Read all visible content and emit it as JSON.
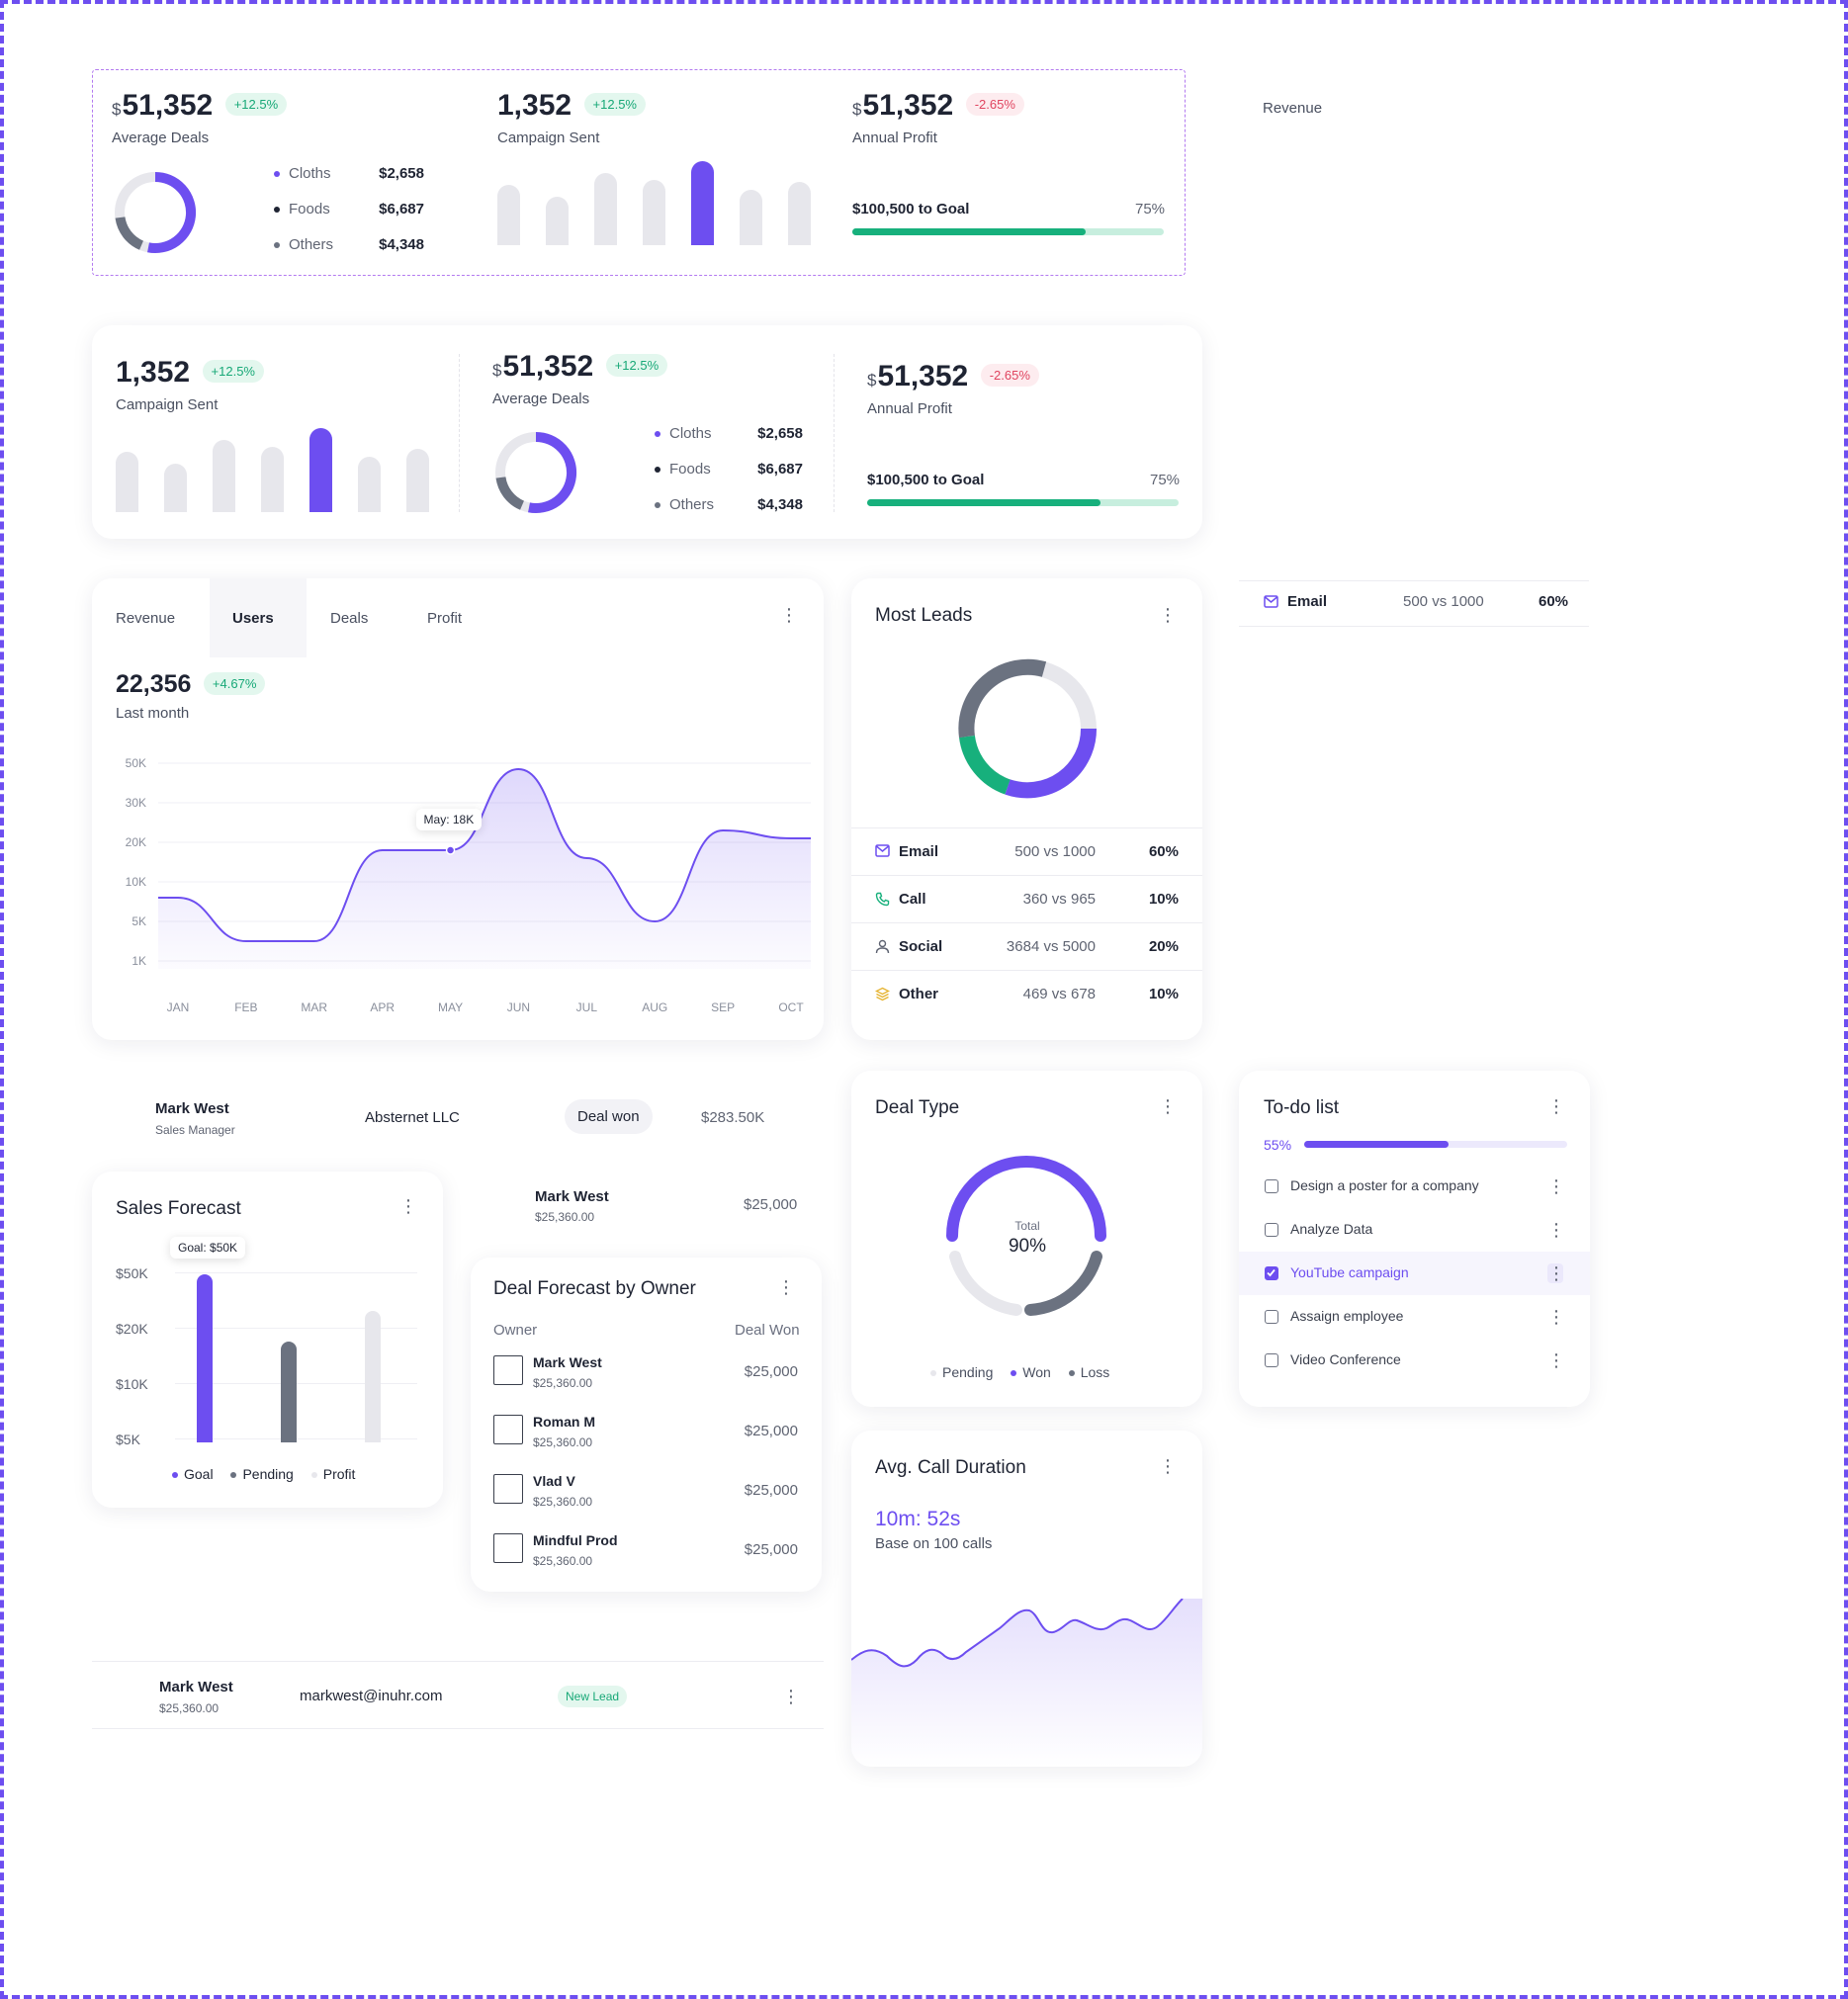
{
  "colors": {
    "accent": "#6d4ef0",
    "green": "#17b07c",
    "gray_dark": "#6b7280",
    "gray_light": "#e7e7ec",
    "red": "#e0445f",
    "yellow": "#e6b432"
  },
  "top_row": {
    "avg_deals": {
      "currency": "$",
      "value": "51,352",
      "change": "+12.5%",
      "label": "Average Deals",
      "items": [
        {
          "name": "Cloths",
          "amount": "$2,658"
        },
        {
          "name": "Foods",
          "amount": "$6,687"
        },
        {
          "name": "Others",
          "amount": "$4,348"
        }
      ]
    },
    "campaign": {
      "value": "1,352",
      "change": "+12.5%",
      "label": "Campaign Sent",
      "bars": [
        0.72,
        0.58,
        0.86,
        0.78,
        1.0,
        0.66,
        0.75
      ],
      "active_index": 4
    },
    "annual": {
      "currency": "$",
      "value": "51,352",
      "change": "-2.65%",
      "label": "Annual Profit",
      "goal_label": "$100,500 to Goal",
      "goal_pct": "75%",
      "goal_fraction": 0.75
    },
    "revenue_label": "Revenue"
  },
  "second_row": {
    "campaign": {
      "value": "1,352",
      "change": "+12.5%",
      "label": "Campaign Sent",
      "bars": [
        0.72,
        0.58,
        0.86,
        0.78,
        1.0,
        0.66,
        0.75
      ],
      "active_index": 4
    },
    "avg_deals": {
      "currency": "$",
      "value": "51,352",
      "change": "+12.5%",
      "label": "Average Deals",
      "items": [
        {
          "name": "Cloths",
          "amount": "$2,658"
        },
        {
          "name": "Foods",
          "amount": "$6,687"
        },
        {
          "name": "Others",
          "amount": "$4,348"
        }
      ]
    },
    "annual": {
      "currency": "$",
      "value": "51,352",
      "change": "-2.65%",
      "label": "Annual Profit",
      "goal_label": "$100,500 to Goal",
      "goal_pct": "75%",
      "goal_fraction": 0.75
    }
  },
  "users_chart": {
    "tabs": [
      "Revenue",
      "Users",
      "Deals",
      "Profit"
    ],
    "active_tab": "Users",
    "value": "22,356",
    "change": "+4.67%",
    "period": "Last month",
    "tooltip": "May: 18K",
    "menu_icon": "kebab-icon"
  },
  "chart_data": {
    "type": "area",
    "categories": [
      "JAN",
      "FEB",
      "MAR",
      "APR",
      "MAY",
      "JUN",
      "JUL",
      "AUG",
      "SEP",
      "OCT"
    ],
    "y_ticks": [
      "50K",
      "30K",
      "20K",
      "10K",
      "5K",
      "1K"
    ],
    "series": [
      {
        "values": [
          8,
          3,
          3,
          18,
          18,
          47,
          16,
          5,
          23,
          21
        ]
      }
    ],
    "highlight": {
      "category": "MAY",
      "label": "May: 18K"
    }
  },
  "most_leads": {
    "title": "Most Leads",
    "rows": [
      {
        "icon": "mail-icon",
        "name": "Email",
        "ratio": "500 vs 1000",
        "pct": "60%",
        "color": "#6d4ef0"
      },
      {
        "icon": "phone-icon",
        "name": "Call",
        "ratio": "360 vs 965",
        "pct": "10%",
        "color": "#17b07c"
      },
      {
        "icon": "user-icon",
        "name": "Social",
        "ratio": "3684 vs 5000",
        "pct": "20%",
        "color": "#5f6472"
      },
      {
        "icon": "layers-icon",
        "name": "Other",
        "ratio": "469 vs 678",
        "pct": "10%",
        "color": "#e6b432"
      }
    ]
  },
  "email_row": {
    "name": "Email",
    "ratio": "500 vs 1000",
    "pct": "60%"
  },
  "deal_row": {
    "name": "Mark West",
    "role": "Sales Manager",
    "company": "Absternet LLC",
    "status": "Deal won",
    "amount": "$283.50K"
  },
  "single_owner": {
    "name": "Mark West",
    "sub": "$25,360.00",
    "amount": "$25,000"
  },
  "sales_forecast": {
    "title": "Sales Forecast",
    "tooltip": "Goal: $50K",
    "y_ticks": [
      "$50K",
      "$20K",
      "$10K",
      "$5K"
    ],
    "bars": [
      {
        "series": "Goal",
        "value": 1.0
      },
      {
        "series": "Pending",
        "value": 0.6
      },
      {
        "series": "Profit",
        "value": 0.78
      }
    ],
    "legend": [
      "Goal",
      "Pending",
      "Profit"
    ]
  },
  "deal_forecast": {
    "title": "Deal Forecast by Owner",
    "col_owner": "Owner",
    "col_won": "Deal Won",
    "rows": [
      {
        "name": "Mark West",
        "sub": "$25,360.00",
        "amount": "$25,000"
      },
      {
        "name": "Roman M",
        "sub": "$25,360.00",
        "amount": "$25,000"
      },
      {
        "name": "Vlad V",
        "sub": "$25,360.00",
        "amount": "$25,000"
      },
      {
        "name": "Mindful Prod",
        "sub": "$25,360.00",
        "amount": "$25,000"
      }
    ]
  },
  "deal_type": {
    "title": "Deal Type",
    "total_label": "Total",
    "total_value": "90%",
    "legend": [
      "Pending",
      "Won",
      "Loss"
    ]
  },
  "call_duration": {
    "title": "Avg. Call Duration",
    "value": "10m: 52s",
    "sub": "Base on 100 calls"
  },
  "todo": {
    "title": "To-do list",
    "progress_label": "55%",
    "progress": 0.55,
    "items": [
      {
        "label": "Design a poster for a company",
        "checked": false
      },
      {
        "label": "Analyze Data",
        "checked": false
      },
      {
        "label": "YouTube campaign",
        "checked": true
      },
      {
        "label": "Assaign employee",
        "checked": false
      },
      {
        "label": "Video Conference",
        "checked": false
      }
    ]
  },
  "lead_row": {
    "name": "Mark West",
    "sub": "$25,360.00",
    "email": "markwest@inuhr.com",
    "status": "New Lead"
  }
}
